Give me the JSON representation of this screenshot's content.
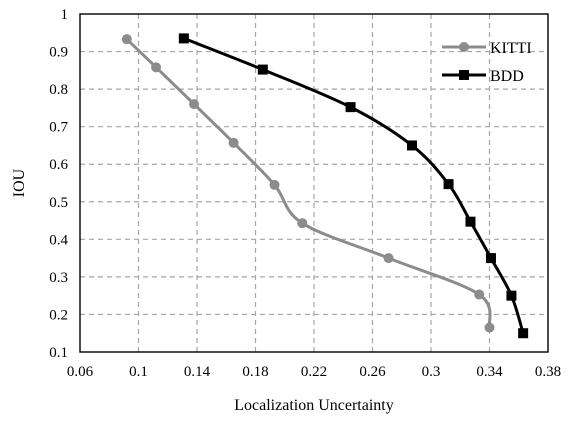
{
  "chart_data": {
    "type": "line",
    "title": "",
    "xlabel": "Localization Uncertainty",
    "ylabel": "IOU",
    "xlim": [
      0.06,
      0.38
    ],
    "ylim": [
      0.1,
      1.0
    ],
    "xticks": [
      "0.06",
      "0.1",
      "0.14",
      "0.18",
      "0.22",
      "0.26",
      "0.3",
      "0.34",
      "0.38"
    ],
    "yticks": [
      "0.1",
      "0.2",
      "0.3",
      "0.4",
      "0.5",
      "0.6",
      "0.7",
      "0.8",
      "0.9",
      "1"
    ],
    "grid": true,
    "legend_position": "top-right",
    "series": [
      {
        "name": "KITTI",
        "color": "#8c8c8c",
        "marker": "circle",
        "points": [
          [
            0.092,
            0.933
          ],
          [
            0.112,
            0.858
          ],
          [
            0.138,
            0.76
          ],
          [
            0.165,
            0.657
          ],
          [
            0.193,
            0.545
          ],
          [
            0.212,
            0.443
          ],
          [
            0.271,
            0.35
          ],
          [
            0.333,
            0.253
          ],
          [
            0.34,
            0.165
          ]
        ]
      },
      {
        "name": "BDD",
        "color": "#000000",
        "marker": "square",
        "points": [
          [
            0.131,
            0.935
          ],
          [
            0.185,
            0.852
          ],
          [
            0.245,
            0.752
          ],
          [
            0.287,
            0.65
          ],
          [
            0.312,
            0.547
          ],
          [
            0.327,
            0.447
          ],
          [
            0.341,
            0.35
          ],
          [
            0.355,
            0.25
          ],
          [
            0.363,
            0.15
          ]
        ]
      }
    ]
  }
}
